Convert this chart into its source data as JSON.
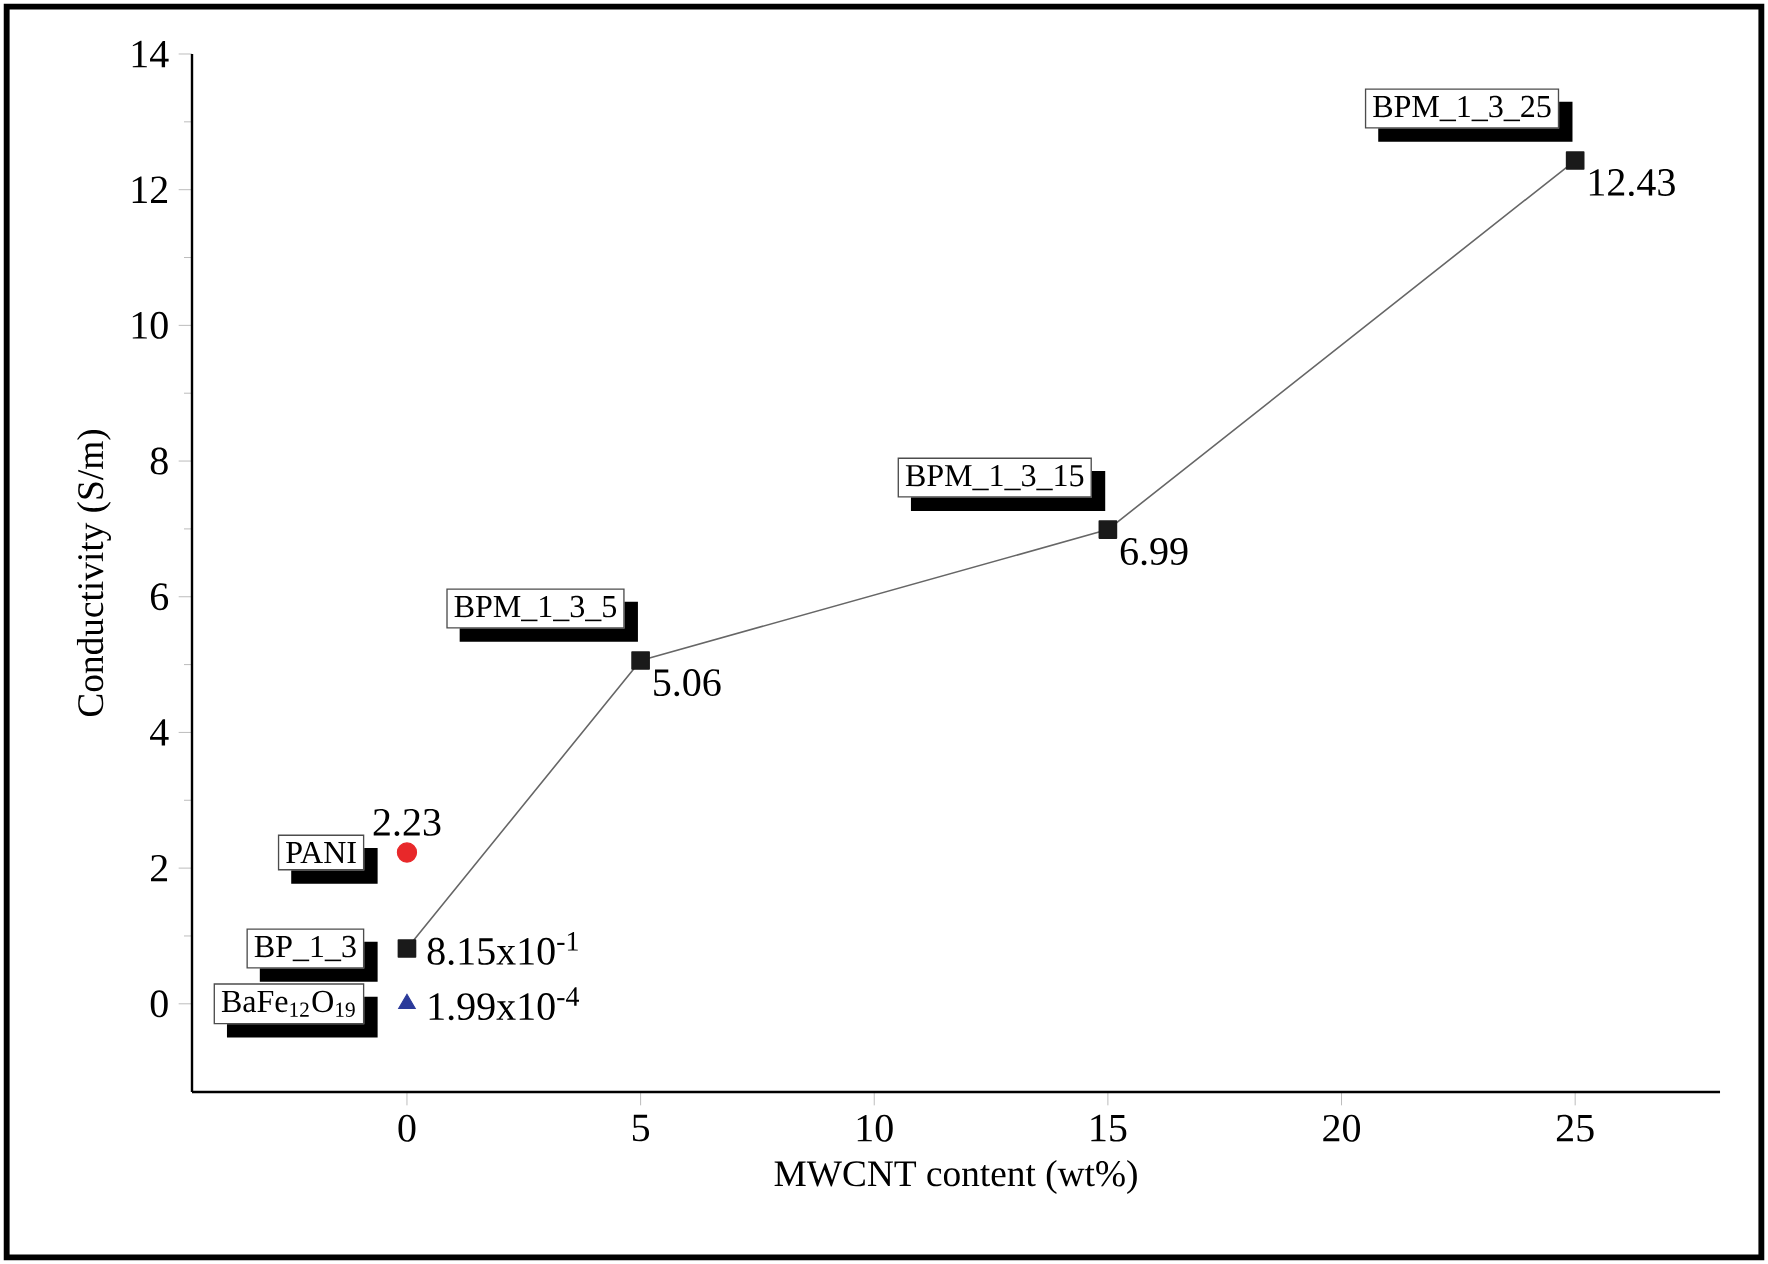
{
  "chart_data": {
    "type": "line",
    "xlabel": "MWCNT content (wt%)",
    "ylabel": "Conductivity (S/m)",
    "xlim": [
      -4.6,
      28.1
    ],
    "ylim": [
      -1.3,
      14
    ],
    "xticks": [
      0,
      5,
      10,
      15,
      20,
      25
    ],
    "yticks": [
      0,
      2,
      4,
      6,
      8,
      10,
      12,
      14
    ],
    "series": [
      {
        "color": "#1a1a1a",
        "marker": "square",
        "x": [
          0,
          5,
          15,
          25
        ],
        "values": [
          0.815,
          5.06,
          6.99,
          12.43
        ],
        "value_labels": [
          "8.15x10$^{-1}$",
          "5.06",
          "6.99",
          "12.43"
        ]
      },
      {
        "type": "scatter",
        "color": "#e8282a",
        "marker": "circle",
        "x": [
          0
        ],
        "values": [
          2.23
        ],
        "value_labels": [
          "2.23"
        ]
      },
      {
        "type": "scatter",
        "color": "#2b3a9a",
        "marker": "triangle",
        "x": [
          0
        ],
        "values": [
          0.000199
        ],
        "value_labels": [
          "1.99x10$^{-4}$"
        ]
      }
    ],
    "annotations": [
      {
        "text": "BPM_1_3_25",
        "x": 25,
        "y": 12.43
      },
      {
        "text": "BPM_1_3_15",
        "x": 15,
        "y": 6.99
      },
      {
        "text": "BPM_1_3_5",
        "x": 5,
        "y": 5.06
      },
      {
        "text": "PANI",
        "x": 0,
        "y": 2.23
      },
      {
        "text": "BP_1_3",
        "x": 0,
        "y": 0.815
      },
      {
        "text": "BaFe$_{12}$O$_{19}$",
        "x": 0,
        "y": 0.000199
      }
    ],
    "grid": false
  }
}
